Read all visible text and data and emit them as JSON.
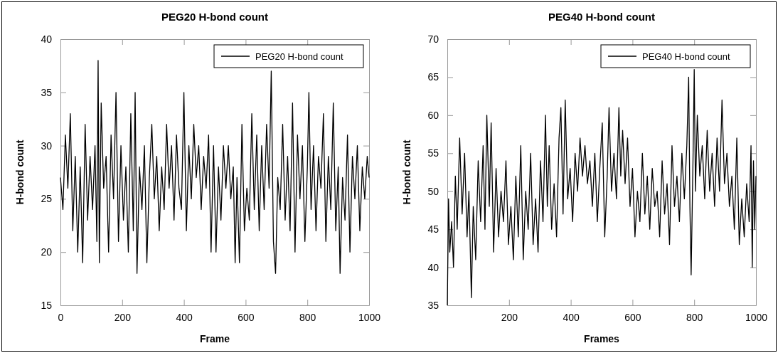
{
  "chart_data": [
    {
      "type": "line",
      "title": "PEG20 H-bond count",
      "xlabel": "Frame",
      "ylabel": "H-bond count",
      "xlim": [
        0,
        1000
      ],
      "xticks": [
        0,
        200,
        400,
        600,
        800,
        1000
      ],
      "ylim": [
        15,
        40
      ],
      "yticks": [
        15,
        20,
        25,
        30,
        35,
        40
      ],
      "legend": "top right",
      "series": [
        {
          "name": "PEG20 H-bond count",
          "color": "#000000",
          "x": [
            0,
            8,
            16,
            24,
            32,
            40,
            48,
            56,
            64,
            72,
            80,
            88,
            96,
            104,
            112,
            118,
            122,
            126,
            132,
            140,
            148,
            156,
            164,
            172,
            180,
            188,
            196,
            204,
            212,
            220,
            228,
            236,
            242,
            248,
            256,
            264,
            272,
            280,
            288,
            296,
            304,
            312,
            320,
            328,
            336,
            344,
            352,
            360,
            368,
            376,
            384,
            392,
            400,
            408,
            416,
            424,
            432,
            440,
            448,
            456,
            464,
            472,
            480,
            488,
            496,
            504,
            512,
            520,
            528,
            536,
            544,
            552,
            560,
            566,
            572,
            580,
            588,
            596,
            604,
            612,
            620,
            628,
            636,
            644,
            652,
            660,
            668,
            676,
            683,
            690,
            697,
            704,
            712,
            720,
            728,
            736,
            744,
            752,
            760,
            768,
            776,
            784,
            792,
            800,
            805,
            812,
            820,
            828,
            836,
            844,
            852,
            860,
            868,
            876,
            884,
            892,
            900,
            906,
            914,
            922,
            930,
            938,
            946,
            954,
            962,
            970,
            978,
            986,
            994,
            1000
          ],
          "values": [
            27,
            24,
            31,
            26,
            33,
            22,
            29,
            20,
            28,
            19,
            32,
            23,
            29,
            24,
            30,
            21,
            38,
            19,
            34,
            26,
            29,
            20,
            31,
            25,
            35,
            21,
            30,
            23,
            28,
            20,
            33,
            22,
            35,
            18,
            28,
            24,
            30,
            19,
            27,
            32,
            25,
            29,
            22,
            28,
            24,
            32,
            26,
            30,
            23,
            31,
            26,
            24,
            35,
            22,
            30,
            25,
            32,
            27,
            30,
            24,
            29,
            26,
            31,
            20,
            30,
            20,
            28,
            23,
            30,
            26,
            30,
            25,
            28,
            19,
            27,
            19,
            32,
            22,
            26,
            23,
            33,
            24,
            31,
            22,
            30,
            24,
            32,
            26,
            37,
            21,
            18,
            27,
            24,
            32,
            23,
            29,
            22,
            34,
            20,
            31,
            25,
            30,
            21,
            28,
            35,
            24,
            30,
            22,
            29,
            26,
            33,
            21,
            29,
            24,
            34,
            22,
            28,
            18,
            27,
            23,
            31,
            20,
            29,
            25,
            30,
            22,
            28,
            25,
            29,
            27
          ]
        }
      ]
    },
    {
      "type": "line",
      "title": "PEG40 H-bond count",
      "xlabel": "Frames",
      "ylabel": "H-bond count",
      "xlim": [
        0,
        1000
      ],
      "xticks": [
        200,
        400,
        600,
        800,
        1000
      ],
      "ylim": [
        35,
        70
      ],
      "yticks": [
        35,
        40,
        45,
        50,
        55,
        60,
        65,
        70
      ],
      "legend": "top right",
      "series": [
        {
          "name": "PEG40 H-bond count",
          "color": "#000000",
          "x": [
            0,
            4,
            8,
            14,
            20,
            26,
            32,
            40,
            48,
            56,
            64,
            70,
            78,
            84,
            92,
            100,
            108,
            116,
            122,
            128,
            136,
            142,
            150,
            158,
            166,
            174,
            182,
            190,
            198,
            206,
            214,
            222,
            230,
            238,
            246,
            254,
            262,
            270,
            278,
            286,
            294,
            302,
            310,
            318,
            324,
            330,
            338,
            346,
            354,
            362,
            368,
            375,
            382,
            390,
            398,
            406,
            414,
            422,
            430,
            438,
            446,
            454,
            462,
            470,
            478,
            486,
            494,
            502,
            510,
            518,
            524,
            532,
            540,
            548,
            556,
            562,
            568,
            576,
            584,
            592,
            600,
            608,
            616,
            624,
            632,
            640,
            648,
            656,
            664,
            672,
            680,
            688,
            696,
            704,
            712,
            720,
            728,
            736,
            744,
            752,
            760,
            768,
            776,
            782,
            786,
            790,
            796,
            800,
            804,
            810,
            818,
            826,
            834,
            842,
            850,
            858,
            866,
            874,
            882,
            890,
            898,
            906,
            914,
            922,
            930,
            938,
            946,
            954,
            962,
            970,
            978,
            984,
            988,
            992,
            996,
            1000
          ],
          "values": [
            35,
            49,
            42,
            46,
            40,
            52,
            45,
            57,
            47,
            55,
            44,
            50,
            36,
            48,
            41,
            54,
            46,
            56,
            45,
            60,
            48,
            59,
            42,
            53,
            44,
            50,
            46,
            54,
            43,
            48,
            41,
            52,
            44,
            56,
            41,
            50,
            45,
            55,
            43,
            49,
            42,
            54,
            46,
            60,
            48,
            56,
            45,
            51,
            44,
            57,
            61,
            47,
            62,
            49,
            53,
            46,
            55,
            50,
            57,
            52,
            56,
            51,
            54,
            48,
            55,
            46,
            53,
            59,
            44,
            52,
            61,
            50,
            55,
            49,
            61,
            52,
            58,
            51,
            57,
            48,
            53,
            44,
            50,
            46,
            55,
            47,
            52,
            45,
            53,
            48,
            50,
            44,
            54,
            47,
            51,
            43,
            56,
            48,
            52,
            46,
            55,
            49,
            56,
            65,
            48,
            39,
            54,
            66,
            50,
            60,
            52,
            56,
            49,
            58,
            50,
            55,
            48,
            57,
            50,
            62,
            51,
            55,
            48,
            52,
            45,
            57,
            43,
            49,
            44,
            51,
            46,
            56,
            40,
            54,
            45,
            52
          ]
        }
      ]
    }
  ]
}
